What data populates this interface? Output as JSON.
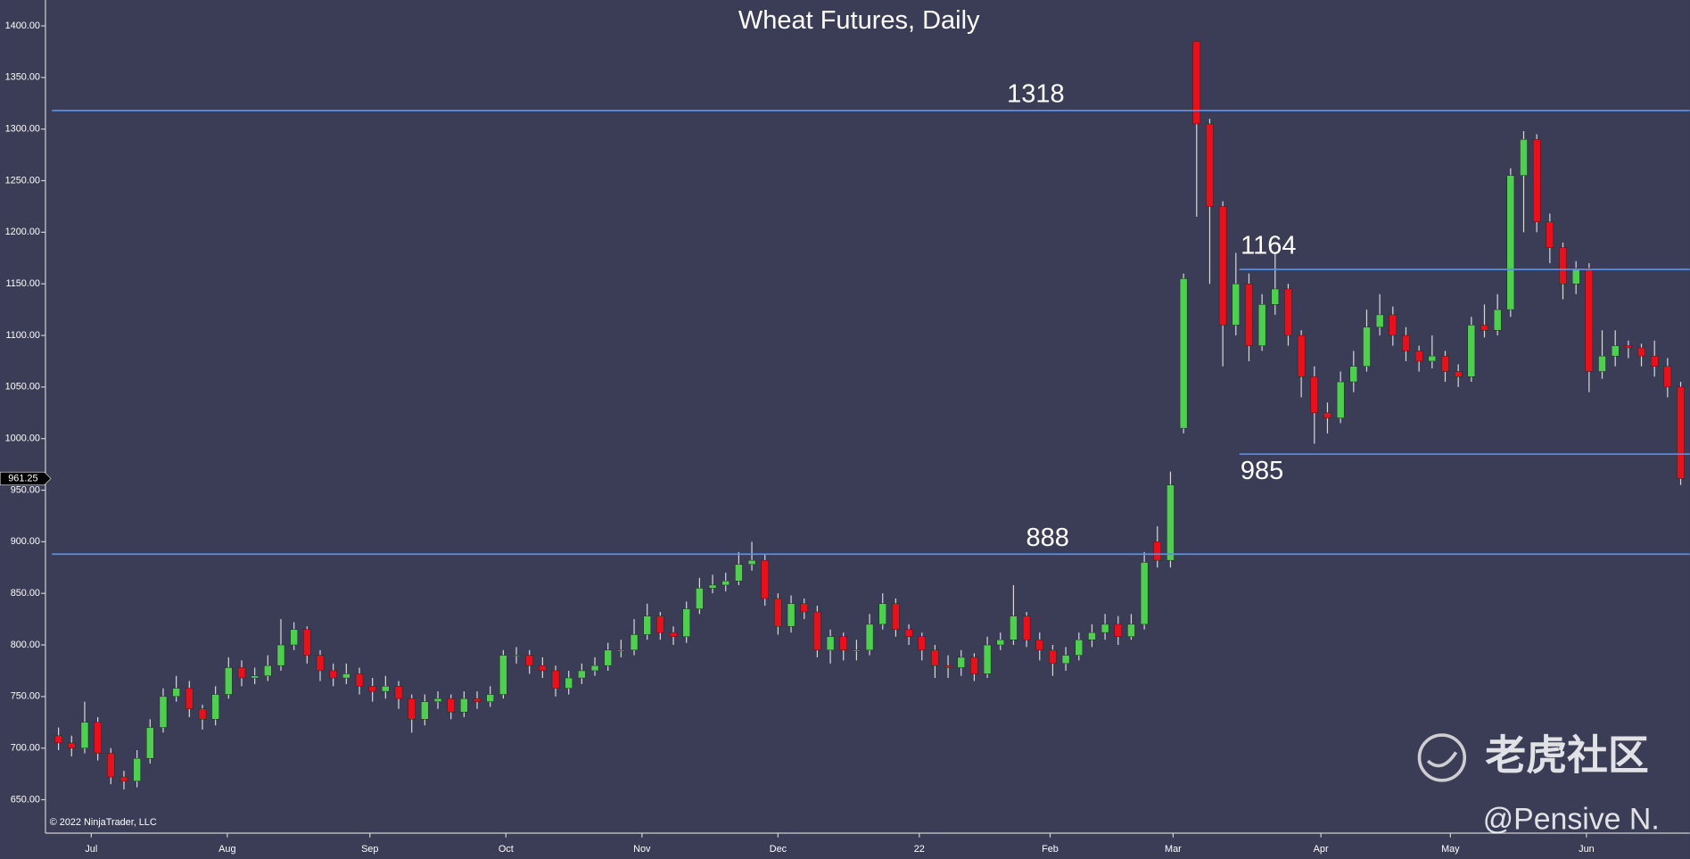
{
  "chart_data": {
    "type": "candlestick",
    "title": "Wheat Futures, Daily",
    "open": [
      712,
      705,
      700,
      725,
      695,
      672,
      668,
      690,
      720,
      750,
      758,
      738,
      728,
      752,
      778,
      768,
      770,
      780,
      800,
      815,
      790,
      775,
      768,
      772,
      760,
      755,
      760,
      748,
      728,
      745,
      748,
      735,
      748,
      745,
      752,
      790,
      790,
      780,
      775,
      758,
      768,
      775,
      780,
      795,
      795,
      810,
      828,
      812,
      808,
      835,
      855,
      858,
      862,
      878,
      882,
      845,
      818,
      840,
      832,
      795,
      808,
      795,
      795,
      820,
      840,
      815,
      808,
      795,
      780,
      778,
      788,
      772,
      800,
      805,
      828,
      805,
      795,
      782,
      790,
      805,
      812,
      820,
      808,
      820,
      900,
      882,
      1010,
      1385,
      1305,
      1225,
      1110,
      1150,
      1090,
      1130,
      1145,
      1100,
      1060,
      1025,
      1020,
      1055,
      1070,
      1108,
      1120,
      1100,
      1085,
      1075,
      1080,
      1065,
      1060,
      1110,
      1105,
      1125,
      1255,
      1290,
      1210,
      1185,
      1150,
      1165,
      1065,
      1080,
      1090,
      1088,
      1080,
      1070,
      1050
    ],
    "high": [
      720,
      712,
      745,
      730,
      700,
      678,
      698,
      728,
      758,
      770,
      765,
      742,
      760,
      788,
      785,
      778,
      790,
      825,
      822,
      818,
      795,
      782,
      782,
      778,
      768,
      770,
      765,
      752,
      752,
      755,
      752,
      755,
      755,
      760,
      795,
      798,
      795,
      788,
      780,
      775,
      782,
      788,
      802,
      805,
      825,
      840,
      832,
      818,
      842,
      865,
      868,
      870,
      890,
      900,
      888,
      850,
      848,
      845,
      838,
      815,
      812,
      805,
      830,
      850,
      845,
      820,
      812,
      800,
      790,
      795,
      792,
      808,
      812,
      858,
      832,
      812,
      800,
      798,
      812,
      820,
      830,
      828,
      830,
      890,
      915,
      968,
      1160,
      1385,
      1310,
      1230,
      1180,
      1160,
      1140,
      1180,
      1150,
      1105,
      1070,
      1035,
      1065,
      1085,
      1125,
      1140,
      1128,
      1108,
      1090,
      1100,
      1085,
      1072,
      1118,
      1130,
      1140,
      1262,
      1298,
      1295,
      1218,
      1190,
      1172,
      1170,
      1105,
      1105,
      1095,
      1092,
      1095,
      1078,
      1055
    ],
    "low": [
      698,
      692,
      695,
      688,
      665,
      660,
      662,
      685,
      715,
      745,
      730,
      718,
      722,
      748,
      760,
      762,
      765,
      775,
      795,
      782,
      765,
      760,
      762,
      752,
      745,
      748,
      738,
      715,
      722,
      738,
      728,
      730,
      738,
      740,
      748,
      782,
      772,
      768,
      750,
      752,
      762,
      770,
      775,
      788,
      790,
      805,
      805,
      800,
      802,
      830,
      850,
      852,
      858,
      872,
      838,
      810,
      812,
      825,
      788,
      782,
      785,
      785,
      790,
      815,
      808,
      800,
      785,
      768,
      768,
      770,
      765,
      768,
      795,
      800,
      798,
      785,
      770,
      775,
      785,
      798,
      805,
      800,
      805,
      815,
      875,
      875,
      1005,
      1215,
      1150,
      1070,
      1100,
      1075,
      1085,
      1120,
      1090,
      1040,
      995,
      1005,
      1015,
      1045,
      1065,
      1100,
      1090,
      1075,
      1065,
      1068,
      1055,
      1050,
      1055,
      1098,
      1100,
      1118,
      1200,
      1200,
      1170,
      1135,
      1140,
      1045,
      1058,
      1070,
      1078,
      1070,
      1060,
      1040,
      955
    ],
    "close": [
      705,
      700,
      725,
      695,
      672,
      668,
      690,
      720,
      750,
      758,
      738,
      728,
      752,
      778,
      768,
      770,
      780,
      800,
      815,
      790,
      775,
      768,
      772,
      760,
      755,
      760,
      748,
      728,
      745,
      748,
      735,
      748,
      745,
      752,
      790,
      790,
      780,
      775,
      758,
      768,
      775,
      780,
      795,
      795,
      810,
      828,
      812,
      808,
      835,
      855,
      858,
      862,
      878,
      882,
      845,
      818,
      840,
      832,
      795,
      808,
      795,
      795,
      820,
      840,
      815,
      808,
      795,
      780,
      778,
      788,
      772,
      800,
      805,
      828,
      805,
      795,
      782,
      790,
      805,
      812,
      820,
      808,
      820,
      880,
      882,
      955,
      1155,
      1305,
      1225,
      1110,
      1150,
      1090,
      1130,
      1145,
      1100,
      1060,
      1025,
      1020,
      1055,
      1070,
      1108,
      1120,
      1100,
      1085,
      1075,
      1080,
      1065,
      1060,
      1110,
      1105,
      1125,
      1255,
      1290,
      1210,
      1185,
      1150,
      1165,
      1065,
      1080,
      1090,
      1088,
      1080,
      1070,
      1050,
      961.25
    ],
    "up_color": "#4fcf4f",
    "down_color": "#e8101a",
    "wick_color": "#d8d8d8",
    "xlim": [
      -1,
      124.7
    ],
    "xticks": [
      {
        "value": 2.5,
        "label": "Jul"
      },
      {
        "value": 12.9,
        "label": "Aug"
      },
      {
        "value": 23.8,
        "label": "Sep"
      },
      {
        "value": 34.2,
        "label": "Oct"
      },
      {
        "value": 44.6,
        "label": "Nov"
      },
      {
        "value": 55.0,
        "label": "Dec"
      },
      {
        "value": 65.8,
        "label": "22"
      },
      {
        "value": 75.8,
        "label": "Feb"
      },
      {
        "value": 85.2,
        "label": "Mar"
      },
      {
        "value": 96.5,
        "label": "Apr"
      },
      {
        "value": 106.4,
        "label": "May"
      },
      {
        "value": 116.8,
        "label": "Jun"
      }
    ],
    "ylim": [
      617.6,
      1425.1
    ],
    "yticks": [
      {
        "value": 650,
        "label": "650.00"
      },
      {
        "value": 700,
        "label": "700.00"
      },
      {
        "value": 750,
        "label": "750.00"
      },
      {
        "value": 800,
        "label": "800.00"
      },
      {
        "value": 850,
        "label": "850.00"
      },
      {
        "value": 900,
        "label": "900.00"
      },
      {
        "value": 950,
        "label": "950.00"
      },
      {
        "value": 1000,
        "label": "1000.00"
      },
      {
        "value": 1050,
        "label": "1050.00"
      },
      {
        "value": 1100,
        "label": "1100.00"
      },
      {
        "value": 1150,
        "label": "1150.00"
      },
      {
        "value": 1200,
        "label": "1200.00"
      },
      {
        "value": 1250,
        "label": "1250.00"
      },
      {
        "value": 1300,
        "label": "1300.00"
      },
      {
        "value": 1350,
        "label": "1350.00"
      },
      {
        "value": 1400,
        "label": "1400.00"
      }
    ],
    "levels": [
      1318,
      1164,
      985,
      888
    ],
    "level_color": "#5b8ee6",
    "last_price": 961.25,
    "copyright": "© 2022 NinjaTrader, LLC",
    "watermark": "老虎社区",
    "author": "@Pensive N."
  }
}
